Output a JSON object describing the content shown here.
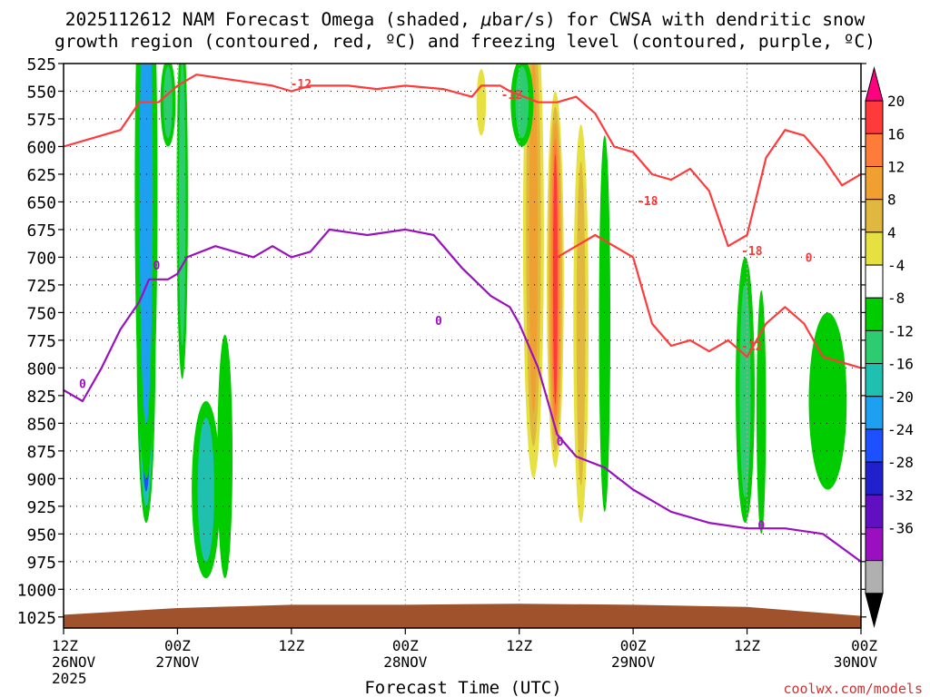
{
  "chart_data": {
    "type": "heatmap",
    "title": {
      "line1_before": "2025112612 NAM Forecast Omega (shaded, ",
      "line1_mu": "μ",
      "line1_after": "bar/s) for CWSA with dendritic snow",
      "line2": "growth region (contoured, red, ºC) and freezing level (contoured, purple, ºC)"
    },
    "xlabel": "Forecast Time (UTC)",
    "credit": "coolwx.com/models",
    "x_range_hours": [
      0,
      84
    ],
    "x_ticks": [
      {
        "h": 0,
        "l1": "12Z",
        "l2": "26NOV",
        "l3": "2025"
      },
      {
        "h": 12,
        "l1": "00Z",
        "l2": "27NOV",
        "l3": ""
      },
      {
        "h": 24,
        "l1": "12Z",
        "l2": "",
        "l3": ""
      },
      {
        "h": 36,
        "l1": "00Z",
        "l2": "28NOV",
        "l3": ""
      },
      {
        "h": 48,
        "l1": "12Z",
        "l2": "",
        "l3": ""
      },
      {
        "h": 60,
        "l1": "00Z",
        "l2": "29NOV",
        "l3": ""
      },
      {
        "h": 72,
        "l1": "12Z",
        "l2": "",
        "l3": ""
      },
      {
        "h": 84,
        "l1": "00Z",
        "l2": "30NOV",
        "l3": ""
      }
    ],
    "y_range_hpa": [
      525,
      1035
    ],
    "y_ticks": [
      525,
      550,
      575,
      600,
      625,
      650,
      675,
      700,
      725,
      750,
      775,
      800,
      825,
      850,
      875,
      900,
      925,
      950,
      975,
      1000,
      1025
    ],
    "colorbar": {
      "labels": [
        "20",
        "16",
        "12",
        "8",
        "4",
        "-4",
        "-8",
        "-12",
        "-16",
        "-20",
        "-24",
        "-28",
        "-32",
        "-36"
      ],
      "colors": [
        "#ff0080",
        "#ff3a3a",
        "#ff7b3a",
        "#f0a030",
        "#e0b840",
        "#e6e040",
        "#ffffff",
        "#00cc00",
        "#2ecc70",
        "#20c0b0",
        "#1ea0f0",
        "#1e50ff",
        "#2020cc",
        "#6010c0",
        "#9a10c0",
        "#b0b0b0",
        "#000000"
      ]
    },
    "omega_blobs": [
      {
        "name": "updraft-core",
        "h": 8.7,
        "p": 770,
        "rh": 1.0,
        "rp": 170,
        "levels": [
          "-4",
          "-12",
          "-20",
          "-28",
          "-36"
        ]
      },
      {
        "name": "column-1",
        "h": 8.7,
        "p": 640,
        "rh": 1.2,
        "rp": 260,
        "levels": [
          "-4",
          "-16"
        ]
      },
      {
        "name": "column-2",
        "h": 12.5,
        "p": 650,
        "rh": 0.6,
        "rp": 160,
        "levels": [
          "-4",
          "-8"
        ]
      },
      {
        "name": "column-3",
        "h": 15.0,
        "p": 910,
        "rh": 1.5,
        "rp": 80,
        "levels": [
          "-4",
          "-12"
        ]
      },
      {
        "name": "column-4",
        "h": 17.0,
        "p": 880,
        "rh": 0.8,
        "rp": 110,
        "levels": [
          "-4"
        ]
      },
      {
        "name": "ascent-1",
        "h": 49.5,
        "p": 680,
        "rh": 1.1,
        "rp": 220,
        "levels": [
          "4",
          "8",
          "12"
        ]
      },
      {
        "name": "ascent-2",
        "h": 51.8,
        "p": 720,
        "rh": 0.9,
        "rp": 170,
        "levels": [
          "4",
          "8",
          "12",
          "16",
          "20"
        ]
      },
      {
        "name": "ascent-3",
        "h": 54.5,
        "p": 760,
        "rh": 0.8,
        "rp": 180,
        "levels": [
          "4",
          "8"
        ]
      },
      {
        "name": "column-5",
        "h": 57.0,
        "p": 760,
        "rh": 0.6,
        "rp": 170,
        "levels": [
          "-4"
        ]
      },
      {
        "name": "column-6",
        "h": 71.8,
        "p": 820,
        "rh": 1.0,
        "rp": 120,
        "levels": [
          "-4",
          "-8"
        ]
      },
      {
        "name": "column-7",
        "h": 73.5,
        "p": 840,
        "rh": 0.5,
        "rp": 110,
        "levels": [
          "-4"
        ]
      },
      {
        "name": "column-8",
        "h": 80.5,
        "p": 830,
        "rh": 2.0,
        "rp": 80,
        "levels": [
          "-4"
        ]
      },
      {
        "name": "column-9",
        "h": 11.0,
        "p": 560,
        "rh": 0.8,
        "rp": 40,
        "levels": [
          "-4",
          "-8"
        ]
      },
      {
        "name": "column-10",
        "h": 48.3,
        "p": 560,
        "rh": 1.2,
        "rp": 40,
        "levels": [
          "-4",
          "-8"
        ]
      },
      {
        "name": "ascent-4",
        "h": 44.0,
        "p": 560,
        "rh": 0.5,
        "rp": 30,
        "levels": [
          "4"
        ]
      }
    ],
    "red_contours": [
      {
        "label": "-12",
        "label_h": 25.0,
        "label_p": 543,
        "points": [
          [
            0,
            600
          ],
          [
            4,
            590
          ],
          [
            6,
            585
          ],
          [
            8,
            560
          ],
          [
            10,
            560
          ],
          [
            12,
            545
          ],
          [
            14,
            535
          ],
          [
            18,
            540
          ],
          [
            22,
            545
          ],
          [
            24,
            550
          ],
          [
            26,
            545
          ],
          [
            30,
            545
          ],
          [
            33,
            548
          ],
          [
            36,
            545
          ],
          [
            40,
            548
          ],
          [
            43,
            555
          ],
          [
            44,
            545
          ],
          [
            46,
            545
          ],
          [
            47,
            550
          ],
          [
            50,
            560
          ],
          [
            52,
            560
          ],
          [
            54,
            555
          ],
          [
            56,
            570
          ],
          [
            58,
            600
          ],
          [
            60,
            605
          ],
          [
            62,
            625
          ],
          [
            64,
            630
          ],
          [
            66,
            620
          ],
          [
            68,
            640
          ],
          [
            70,
            690
          ],
          [
            72,
            680
          ],
          [
            74,
            610
          ],
          [
            76,
            585
          ],
          [
            78,
            590
          ],
          [
            80,
            610
          ],
          [
            82,
            635
          ],
          [
            84,
            625
          ]
        ]
      },
      {
        "label": "-18",
        "label_h": 61.5,
        "label_p": 645,
        "points": [
          [
            52,
            700
          ],
          [
            56,
            680
          ],
          [
            60,
            700
          ],
          [
            62,
            760
          ],
          [
            64,
            780
          ],
          [
            66,
            775
          ],
          [
            68,
            785
          ],
          [
            70,
            775
          ],
          [
            72,
            790
          ],
          [
            74,
            760
          ],
          [
            76,
            745
          ],
          [
            78,
            760
          ],
          [
            80,
            790
          ],
          [
            84,
            800
          ]
        ]
      },
      {
        "label": "0",
        "label_h": 78.5,
        "label_p": 700,
        "points": []
      }
    ],
    "purple_contours": [
      {
        "label": "0",
        "label_h": 10.0,
        "label_p": 707,
        "points": [
          [
            0,
            820
          ],
          [
            2,
            830
          ],
          [
            4,
            800
          ],
          [
            6,
            765
          ],
          [
            8,
            740
          ],
          [
            9,
            720
          ],
          [
            11,
            720
          ],
          [
            12,
            715
          ],
          [
            13,
            700
          ],
          [
            16,
            690
          ],
          [
            18,
            695
          ],
          [
            20,
            700
          ],
          [
            22,
            690
          ],
          [
            24,
            700
          ],
          [
            26,
            695
          ],
          [
            28,
            675
          ],
          [
            32,
            680
          ],
          [
            36,
            675
          ],
          [
            39,
            680
          ],
          [
            42,
            710
          ],
          [
            45,
            735
          ],
          [
            47,
            745
          ],
          [
            48,
            760
          ],
          [
            50,
            800
          ],
          [
            51,
            830
          ],
          [
            52,
            860
          ],
          [
            54,
            880
          ],
          [
            57,
            890
          ],
          [
            60,
            910
          ],
          [
            64,
            930
          ],
          [
            68,
            940
          ],
          [
            72,
            945
          ],
          [
            76,
            945
          ],
          [
            80,
            950
          ],
          [
            84,
            975
          ]
        ]
      }
    ],
    "terrain": {
      "color": "#a0522d",
      "top_hpa": [
        [
          0,
          1023
        ],
        [
          12,
          1017
        ],
        [
          24,
          1014
        ],
        [
          36,
          1014
        ],
        [
          48,
          1013
        ],
        [
          60,
          1014
        ],
        [
          72,
          1016
        ],
        [
          84,
          1024
        ]
      ]
    },
    "contour_labels": [
      {
        "text": "-12",
        "h": 25.0,
        "p": 543,
        "color": "#ff3a3a"
      },
      {
        "text": "-12",
        "h": 47.2,
        "p": 553,
        "color": "#ff3a3a"
      },
      {
        "text": "-18",
        "h": 61.5,
        "p": 649,
        "color": "#ff3a3a"
      },
      {
        "text": "-18",
        "h": 72.5,
        "p": 694,
        "color": "#ff3a3a"
      },
      {
        "text": "-12",
        "h": 72.5,
        "p": 780,
        "color": "#ff3a3a"
      },
      {
        "text": "0",
        "h": 78.5,
        "p": 700,
        "color": "#ff3a3a"
      },
      {
        "text": "0",
        "h": 2.0,
        "p": 814,
        "color": "#9a10c0"
      },
      {
        "text": "0",
        "h": 9.8,
        "p": 707,
        "color": "#9a10c0"
      },
      {
        "text": "0",
        "h": 39.5,
        "p": 757,
        "color": "#9a10c0"
      },
      {
        "text": "0",
        "h": 52.3,
        "p": 866,
        "color": "#9a10c0"
      },
      {
        "text": "0",
        "h": 73.5,
        "p": 942,
        "color": "#9a10c0"
      }
    ]
  }
}
